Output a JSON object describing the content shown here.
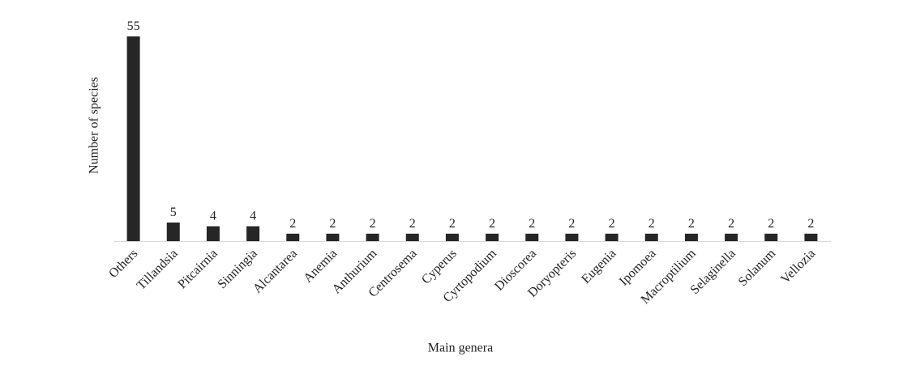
{
  "chart_data": {
    "type": "bar",
    "x_label": "Main genera",
    "y_label": "Number of species",
    "categories": [
      "Others",
      "Tillandsia",
      "Pitcairnia",
      "Sinningia",
      "Alcantarea",
      "Anemia",
      "Anthurium",
      "Centrosema",
      "Cyperus",
      "Cyrtopodium",
      "Dioscorea",
      "Doryopteris",
      "Eugenia",
      "Ipomoea",
      "Macroptilium",
      "Selaginella",
      "Solanum",
      "Vellozia"
    ],
    "values": [
      55,
      5,
      4,
      4,
      2,
      2,
      2,
      2,
      2,
      2,
      2,
      2,
      2,
      2,
      2,
      2,
      2,
      2
    ],
    "color": "#262626",
    "ylim": [
      0,
      55
    ]
  }
}
